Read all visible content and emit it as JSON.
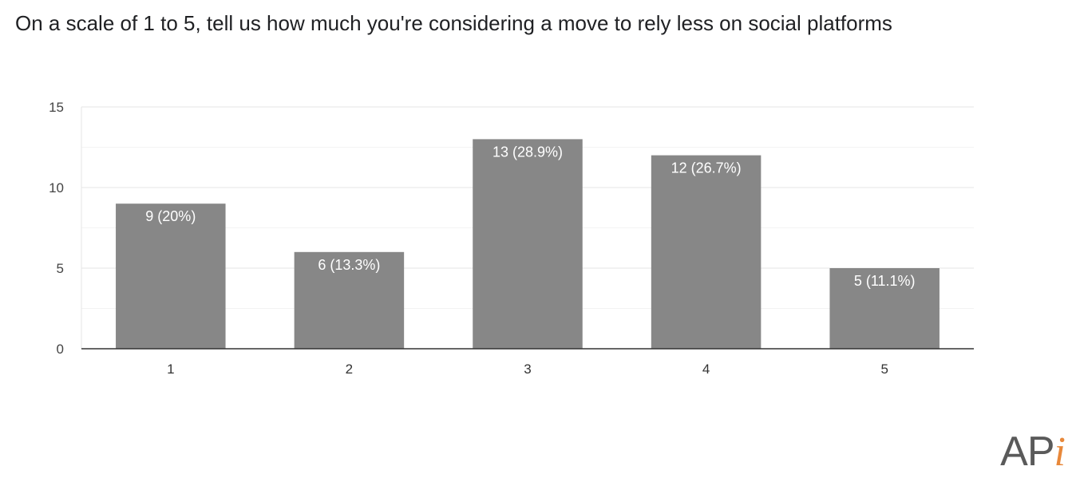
{
  "chart_data": {
    "type": "bar",
    "title": "On a scale of 1 to 5, tell us how much you're considering a move to rely less on social platforms",
    "categories": [
      "1",
      "2",
      "3",
      "4",
      "5"
    ],
    "values": [
      9,
      6,
      13,
      12,
      5
    ],
    "data_labels": [
      "9 (20%)",
      "6 (13.3%)",
      "13 (28.9%)",
      "12 (26.7%)",
      "5 (11.1%)"
    ],
    "y_ticks": [
      "0",
      "5",
      "10",
      "15"
    ],
    "ylim": [
      0,
      15
    ],
    "grid": true,
    "legend": "none",
    "bar_color": "#878787"
  },
  "logo": {
    "text_ap": "AP",
    "text_i": "i",
    "accent_color": "#e8883a"
  }
}
